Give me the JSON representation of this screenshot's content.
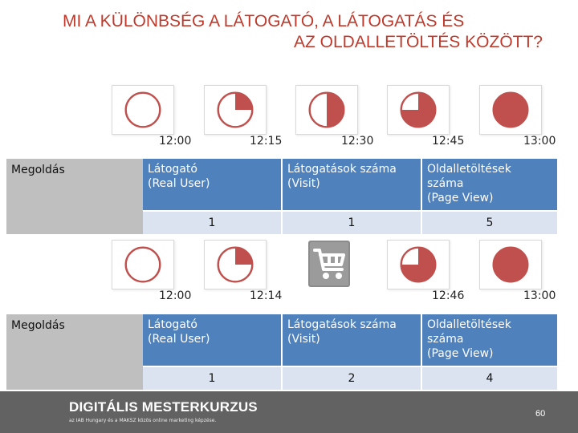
{
  "title": {
    "line1": "MI A KÜLÖNBSÉG A LÁTOGATÓ, A LÁTOGATÁS ÉS",
    "line2": "AZ OLDALLETÖLTÉS KÖZÖTT?"
  },
  "colors": {
    "accent": "#c0392b",
    "pie_fill": "#c0504d",
    "header_blue": "#4f81bd",
    "value_row": "#dbe3f0",
    "footer": "#626262"
  },
  "row1": {
    "times": [
      "12:00",
      "12:15",
      "12:30",
      "12:45",
      "13:00"
    ],
    "pie_fractions": [
      0,
      0.25,
      0.5,
      0.75,
      1
    ],
    "label": "Megoldás",
    "headers": {
      "visitor": "Látogató (Real User)",
      "visits": "Látogatások száma (Visit)",
      "pageviews": "Oldalletöltések száma (Page View)"
    },
    "values": {
      "visitor": "1",
      "visits": "1",
      "pageviews": "5"
    }
  },
  "row2": {
    "times": [
      "12:00",
      "12:14",
      "12:46",
      "13:00"
    ],
    "pie_fractions": [
      0,
      0.25,
      0.75,
      1
    ],
    "cart_icon": "shopping-cart-icon",
    "label": "Megoldás",
    "headers": {
      "visitor": "Látogató (Real User)",
      "visits": "Látogatások száma (Visit)",
      "pageviews": "Oldalletöltések száma (Page View)"
    },
    "values": {
      "visitor": "1",
      "visits": "2",
      "pageviews": "4"
    }
  },
  "footer": {
    "brand": "DIGITÁLIS MESTERKURZUS",
    "subtitle": "az IAB Hungary és a MAKSZ közös online marketing képzése.",
    "page": "60"
  }
}
